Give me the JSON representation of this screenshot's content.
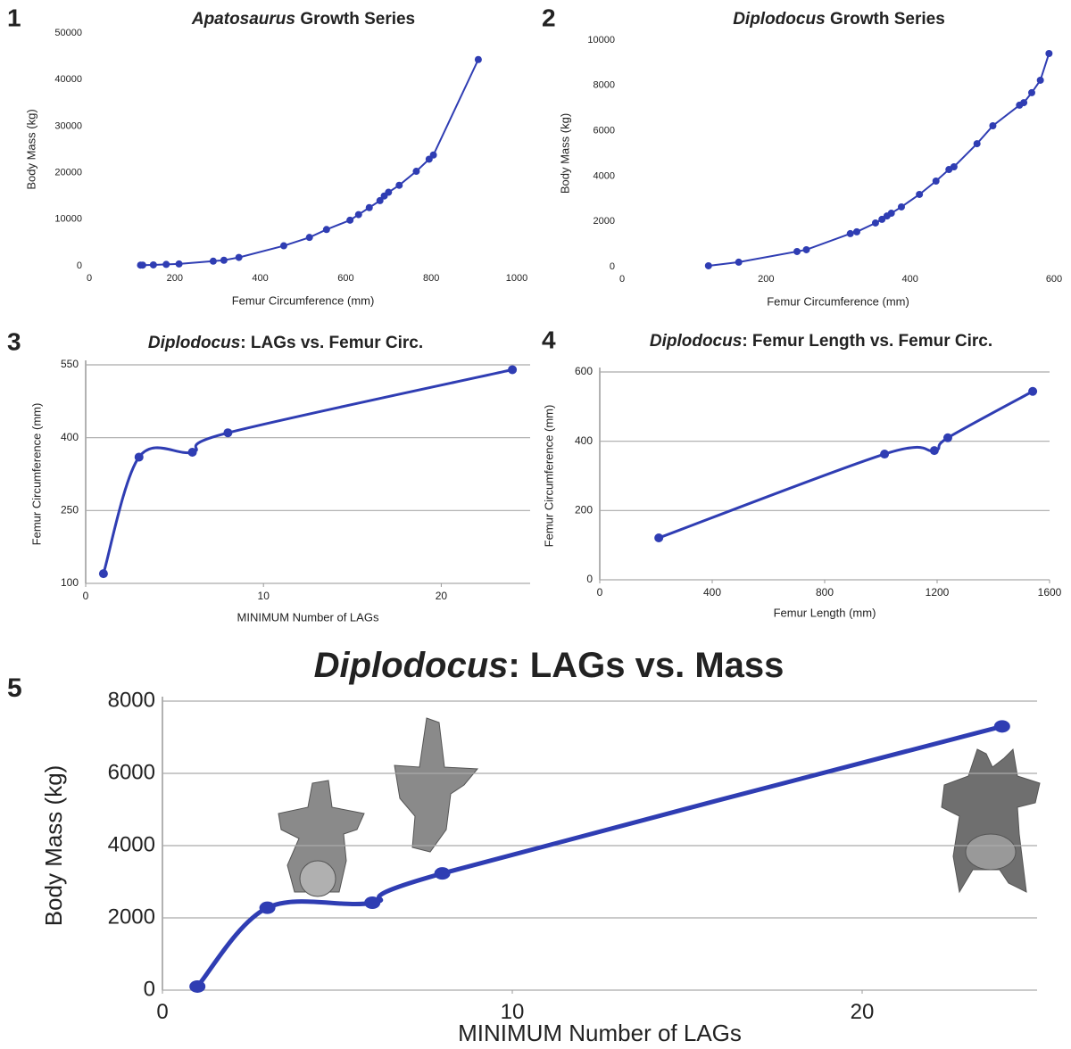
{
  "chart_data": [
    {
      "panel": "1",
      "type": "line",
      "title": [
        "Apatosaurus",
        "Growth Series"
      ],
      "x_label": "Femur Circumference (mm)",
      "y_label": "Body Mass (kg)",
      "x": [
        120,
        125,
        150,
        180,
        210,
        290,
        315,
        350,
        455,
        515,
        555,
        610,
        630,
        655,
        680,
        690,
        700,
        725,
        765,
        795,
        805,
        910
      ],
      "values": [
        150,
        150,
        200,
        300,
        400,
        1000,
        1200,
        1800,
        4300,
        6100,
        7800,
        9800,
        11000,
        12500,
        14000,
        15000,
        15800,
        17300,
        20300,
        22900,
        23800,
        44300
      ],
      "color": "#2f3db3",
      "xlim": [
        0,
        1000
      ],
      "xticks": [
        0,
        200,
        400,
        600,
        800,
        1000
      ],
      "ylim": [
        0,
        50000
      ],
      "yticks": [
        0,
        10000,
        20000,
        30000,
        40000,
        50000
      ],
      "grid": false,
      "smooth": false
    },
    {
      "panel": "2",
      "type": "line",
      "title": [
        "Diplodocus",
        "Growth Series"
      ],
      "x_label": "Femur Circumference (mm)",
      "y_label": "Body Mass (kg)",
      "x": [
        120,
        162,
        243,
        256,
        317,
        326,
        352,
        361,
        368,
        374,
        388,
        413,
        436,
        454,
        461,
        493,
        515,
        552,
        558,
        569,
        581,
        593
      ],
      "values": [
        40,
        200,
        670,
        750,
        1460,
        1540,
        1930,
        2090,
        2240,
        2360,
        2640,
        3190,
        3780,
        4290,
        4410,
        5430,
        6220,
        7130,
        7240,
        7680,
        8230,
        9410
      ],
      "color": "#2f3db3",
      "xlim": [
        0,
        600
      ],
      "xticks": [
        0,
        200,
        400,
        600
      ],
      "ylim": [
        0,
        10000
      ],
      "yticks": [
        0,
        2000,
        4000,
        6000,
        8000,
        10000
      ],
      "grid": false,
      "smooth": false
    },
    {
      "panel": "3",
      "type": "line",
      "title": [
        "Diplodocus",
        ": LAGs vs. Femur Circ."
      ],
      "x_label": "MINIMUM Number of LAGs",
      "y_label": "Femur Circumference (mm)",
      "x": [
        1,
        3,
        6,
        8,
        24
      ],
      "values": [
        120,
        360,
        370,
        410,
        540
      ],
      "color": "#2f3db3",
      "xlim": [
        0,
        25
      ],
      "xticks": [
        0,
        10,
        20
      ],
      "ylim": [
        100,
        550
      ],
      "yticks": [
        100,
        250,
        400,
        550
      ],
      "grid": true,
      "smooth": true
    },
    {
      "panel": "4",
      "type": "line",
      "title": [
        "Diplodocus",
        ": Femur Length vs. Femur Circ."
      ],
      "x_label": "Femur Length (mm)",
      "y_label": "Femur Circumference (mm)",
      "x": [
        210,
        1013,
        1190,
        1238,
        1540
      ],
      "values": [
        121,
        363,
        373,
        410,
        544
      ],
      "color": "#2f3db3",
      "xlim": [
        0,
        1600
      ],
      "xticks": [
        0,
        400,
        800,
        1200,
        1600
      ],
      "ylim": [
        0,
        600
      ],
      "yticks": [
        0,
        200,
        400,
        600
      ],
      "grid": true,
      "smooth": true
    },
    {
      "panel": "5",
      "type": "line",
      "title": [
        "Diplodocus",
        ": LAGs vs. Mass"
      ],
      "x_label": "MINIMUM Number of LAGs",
      "y_label": "Body Mass (kg)",
      "x": [
        1,
        3,
        6,
        8,
        24
      ],
      "values": [
        100,
        2280,
        2420,
        3230,
        7300
      ],
      "color": "#2f3db3",
      "xlim": [
        0,
        25
      ],
      "xticks": [
        0,
        10,
        20
      ],
      "ylim": [
        0,
        8000
      ],
      "yticks": [
        0,
        2000,
        4000,
        6000,
        8000
      ],
      "grid": true,
      "smooth": true
    }
  ]
}
